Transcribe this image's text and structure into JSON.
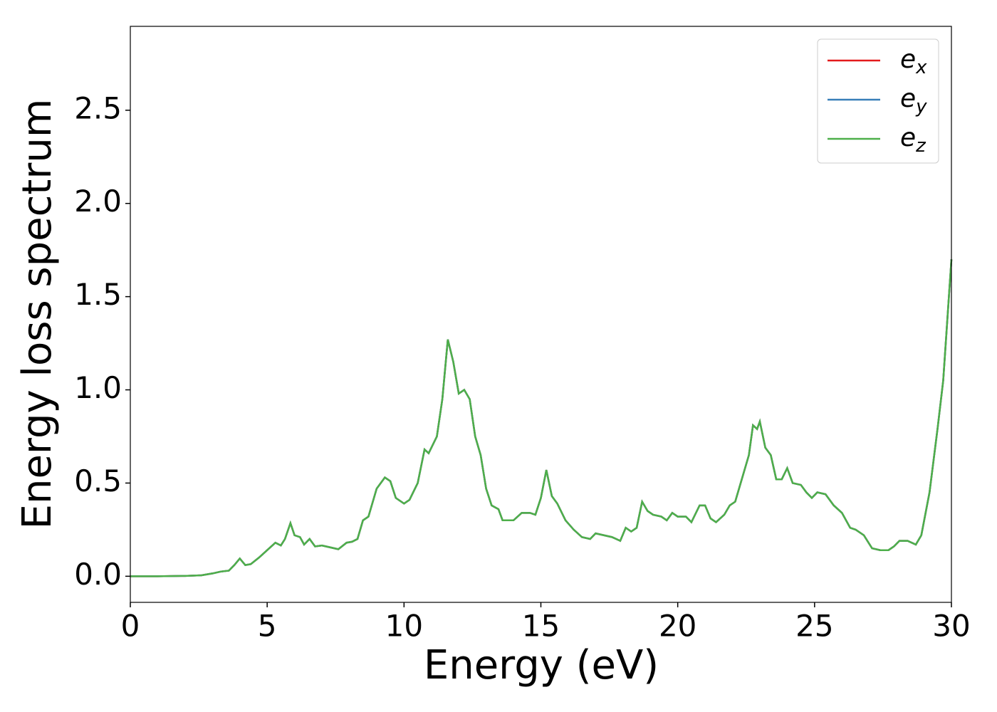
{
  "chart_data": {
    "type": "line",
    "xlabel": "Energy (eV)",
    "ylabel": "Energy loss spectrum",
    "x": [
      0,
      1,
      2,
      2.6,
      3,
      3.3,
      3.6,
      3.8,
      4.0,
      4.2,
      4.4,
      4.7,
      5.0,
      5.3,
      5.5,
      5.65,
      5.85,
      6.0,
      6.2,
      6.35,
      6.55,
      6.75,
      7.0,
      7.3,
      7.6,
      7.9,
      8.1,
      8.3,
      8.5,
      8.7,
      9.0,
      9.3,
      9.5,
      9.7,
      10.0,
      10.2,
      10.5,
      10.75,
      10.9,
      11.2,
      11.4,
      11.6,
      11.8,
      12.0,
      12.2,
      12.4,
      12.6,
      12.8,
      13.0,
      13.2,
      13.45,
      13.6,
      14.0,
      14.3,
      14.6,
      14.8,
      15.0,
      15.2,
      15.4,
      15.6,
      15.9,
      16.2,
      16.5,
      16.8,
      17.0,
      17.3,
      17.6,
      17.9,
      18.1,
      18.3,
      18.5,
      18.7,
      18.9,
      19.1,
      19.4,
      19.6,
      19.8,
      20.0,
      20.3,
      20.5,
      20.8,
      21.0,
      21.2,
      21.4,
      21.7,
      21.9,
      22.1,
      22.4,
      22.6,
      22.75,
      22.9,
      23.0,
      23.2,
      23.4,
      23.6,
      23.8,
      24.0,
      24.2,
      24.5,
      24.7,
      24.9,
      25.1,
      25.4,
      25.7,
      26.0,
      26.3,
      26.5,
      26.8,
      27.1,
      27.4,
      27.7,
      27.9,
      28.1,
      28.4,
      28.7,
      28.9,
      29.2,
      29.5,
      29.7,
      30.0
    ],
    "series": [
      {
        "name": "ex",
        "color": "#e41a1c",
        "values": [
          0,
          0,
          0.002,
          0.005,
          0.015,
          0.025,
          0.03,
          0.06,
          0.095,
          0.06,
          0.065,
          0.1,
          0.14,
          0.18,
          0.165,
          0.2,
          0.285,
          0.22,
          0.21,
          0.17,
          0.2,
          0.16,
          0.165,
          0.155,
          0.145,
          0.18,
          0.185,
          0.2,
          0.3,
          0.32,
          0.47,
          0.53,
          0.51,
          0.42,
          0.39,
          0.41,
          0.5,
          0.68,
          0.66,
          0.75,
          0.95,
          1.27,
          1.15,
          0.98,
          1.0,
          0.95,
          0.75,
          0.65,
          0.47,
          0.38,
          0.36,
          0.3,
          0.3,
          0.34,
          0.34,
          0.33,
          0.42,
          0.57,
          0.43,
          0.39,
          0.3,
          0.25,
          0.21,
          0.2,
          0.23,
          0.22,
          0.21,
          0.19,
          0.26,
          0.24,
          0.26,
          0.4,
          0.35,
          0.33,
          0.32,
          0.3,
          0.34,
          0.32,
          0.32,
          0.29,
          0.38,
          0.38,
          0.31,
          0.29,
          0.33,
          0.38,
          0.4,
          0.55,
          0.65,
          0.81,
          0.79,
          0.83,
          0.69,
          0.65,
          0.52,
          0.52,
          0.58,
          0.5,
          0.49,
          0.45,
          0.42,
          0.45,
          0.44,
          0.38,
          0.34,
          0.26,
          0.25,
          0.22,
          0.15,
          0.14,
          0.14,
          0.16,
          0.19,
          0.19,
          0.17,
          0.22,
          0.45,
          0.8,
          1.05,
          1.7
        ]
      },
      {
        "name": "ey",
        "color": "#377eb8",
        "values": [
          0,
          0,
          0.002,
          0.005,
          0.015,
          0.025,
          0.03,
          0.06,
          0.095,
          0.06,
          0.065,
          0.1,
          0.14,
          0.18,
          0.165,
          0.2,
          0.285,
          0.22,
          0.21,
          0.17,
          0.2,
          0.16,
          0.165,
          0.155,
          0.145,
          0.18,
          0.185,
          0.2,
          0.3,
          0.32,
          0.47,
          0.53,
          0.51,
          0.42,
          0.39,
          0.41,
          0.5,
          0.68,
          0.66,
          0.75,
          0.95,
          1.27,
          1.15,
          0.98,
          1.0,
          0.95,
          0.75,
          0.65,
          0.47,
          0.38,
          0.36,
          0.3,
          0.3,
          0.34,
          0.34,
          0.33,
          0.42,
          0.57,
          0.43,
          0.39,
          0.3,
          0.25,
          0.21,
          0.2,
          0.23,
          0.22,
          0.21,
          0.19,
          0.26,
          0.24,
          0.26,
          0.4,
          0.35,
          0.33,
          0.32,
          0.3,
          0.34,
          0.32,
          0.32,
          0.29,
          0.38,
          0.38,
          0.31,
          0.29,
          0.33,
          0.38,
          0.4,
          0.55,
          0.65,
          0.81,
          0.79,
          0.83,
          0.69,
          0.65,
          0.52,
          0.52,
          0.58,
          0.5,
          0.49,
          0.45,
          0.42,
          0.45,
          0.44,
          0.38,
          0.34,
          0.26,
          0.25,
          0.22,
          0.15,
          0.14,
          0.14,
          0.16,
          0.19,
          0.19,
          0.17,
          0.22,
          0.45,
          0.8,
          1.05,
          1.7
        ]
      },
      {
        "name": "ez",
        "color": "#4daf4a",
        "values": [
          0,
          0,
          0.002,
          0.005,
          0.015,
          0.025,
          0.03,
          0.06,
          0.095,
          0.06,
          0.065,
          0.1,
          0.14,
          0.18,
          0.165,
          0.2,
          0.285,
          0.22,
          0.21,
          0.17,
          0.2,
          0.16,
          0.165,
          0.155,
          0.145,
          0.18,
          0.185,
          0.2,
          0.3,
          0.32,
          0.47,
          0.53,
          0.51,
          0.42,
          0.39,
          0.41,
          0.5,
          0.68,
          0.66,
          0.75,
          0.95,
          1.27,
          1.15,
          0.98,
          1.0,
          0.95,
          0.75,
          0.65,
          0.47,
          0.38,
          0.36,
          0.3,
          0.3,
          0.34,
          0.34,
          0.33,
          0.42,
          0.57,
          0.43,
          0.39,
          0.3,
          0.25,
          0.21,
          0.2,
          0.23,
          0.22,
          0.21,
          0.19,
          0.26,
          0.24,
          0.26,
          0.4,
          0.35,
          0.33,
          0.32,
          0.3,
          0.34,
          0.32,
          0.32,
          0.29,
          0.38,
          0.38,
          0.31,
          0.29,
          0.33,
          0.38,
          0.4,
          0.55,
          0.65,
          0.81,
          0.79,
          0.83,
          0.69,
          0.65,
          0.52,
          0.52,
          0.58,
          0.5,
          0.49,
          0.45,
          0.42,
          0.45,
          0.44,
          0.38,
          0.34,
          0.26,
          0.25,
          0.22,
          0.15,
          0.14,
          0.14,
          0.16,
          0.19,
          0.19,
          0.17,
          0.22,
          0.45,
          0.8,
          1.05,
          1.7
        ]
      }
    ],
    "xlim": [
      0,
      30
    ],
    "xticks": [
      0,
      5,
      10,
      15,
      20,
      25,
      30
    ],
    "ylim": [
      -0.14,
      2.95
    ],
    "yticks": [
      {
        "value": 0,
        "label": "0.0"
      },
      0.5,
      {
        "value": 1,
        "label": "1.0"
      },
      1.5,
      {
        "value": 2,
        "label": "2.0"
      },
      2.5
    ],
    "legend": "upper right",
    "grid": false
  }
}
